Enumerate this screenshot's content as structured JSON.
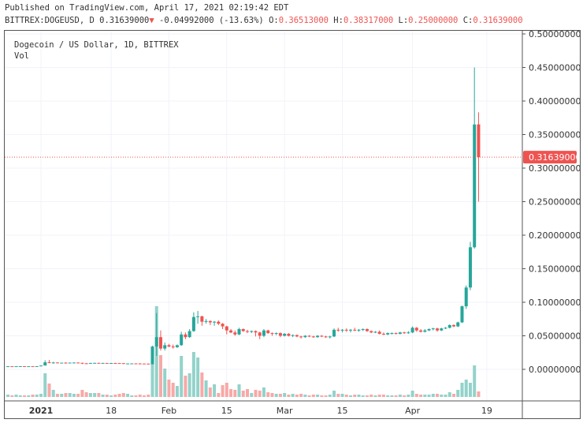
{
  "header": {
    "published": "Published on TradingView.com, April 17, 2021 02:19:42 EDT",
    "symbol": "BITTREX:DOGEUSD, D",
    "last": "0.31639000",
    "change": "-0.04992000 (-13.63%)",
    "o_label": "O:",
    "o": "0.36513000",
    "h_label": "H:",
    "h": "0.38317000",
    "l_label": "L:",
    "l": "0.25000000",
    "c_label": "C:",
    "c": "0.31639000",
    "down_arrow": "triangle-down-icon"
  },
  "colors": {
    "up": "#26a69a",
    "down": "#ef5350",
    "up_vol": "#93d2ca",
    "down_vol": "#f7a9a7"
  },
  "chart_data": {
    "type": "candlestick",
    "title": "Dogecoin / US Dollar, 1D, BITTREX",
    "volume_label": "Vol",
    "start_date": "2020-12-24",
    "ylim": [
      0,
      0.5
    ],
    "yticks": [
      "0.50000000",
      "0.45000000",
      "0.40000000",
      "0.35000000",
      "0.30000000",
      "0.25000000",
      "0.20000000",
      "0.15000000",
      "0.10000000",
      "0.05000000",
      "0.00000000"
    ],
    "yvalues": [
      0.5,
      0.45,
      0.4,
      0.35,
      0.3,
      0.25,
      0.2,
      0.15,
      0.1,
      0.05,
      0
    ],
    "xticks": [
      {
        "label": "2021",
        "day": 0,
        "bold": true
      },
      {
        "label": "18",
        "day": 17
      },
      {
        "label": "Feb",
        "day": 31
      },
      {
        "label": "15",
        "day": 45
      },
      {
        "label": "Mar",
        "day": 59
      },
      {
        "label": "15",
        "day": 73
      },
      {
        "label": "Apr",
        "day": 90
      },
      {
        "label": "19",
        "day": 108
      }
    ],
    "last_price_label": "0.31639000",
    "last_price": 0.31639,
    "ohlcv": [
      [
        0.0046,
        0.0048,
        0.0044,
        0.0046,
        3
      ],
      [
        0.0046,
        0.0047,
        0.0045,
        0.0045,
        2
      ],
      [
        0.0045,
        0.0047,
        0.0044,
        0.0046,
        3
      ],
      [
        0.0046,
        0.0048,
        0.0045,
        0.0047,
        2
      ],
      [
        0.0047,
        0.0048,
        0.0045,
        0.0045,
        2
      ],
      [
        0.0045,
        0.0047,
        0.0044,
        0.0046,
        2
      ],
      [
        0.0046,
        0.0047,
        0.0045,
        0.0045,
        3
      ],
      [
        0.0045,
        0.0048,
        0.0045,
        0.0047,
        3
      ],
      [
        0.0047,
        0.0058,
        0.0046,
        0.0057,
        4
      ],
      [
        0.0057,
        0.0135,
        0.0056,
        0.0105,
        30
      ],
      [
        0.0105,
        0.014,
        0.0093,
        0.0099,
        17
      ],
      [
        0.0099,
        0.0112,
        0.0085,
        0.0102,
        9
      ],
      [
        0.0102,
        0.0104,
        0.009,
        0.0097,
        4
      ],
      [
        0.0097,
        0.01,
        0.0092,
        0.0099,
        4
      ],
      [
        0.0099,
        0.0106,
        0.0094,
        0.0098,
        5
      ],
      [
        0.0098,
        0.0101,
        0.009,
        0.01,
        5
      ],
      [
        0.01,
        0.0104,
        0.0095,
        0.0101,
        4
      ],
      [
        0.0101,
        0.0104,
        0.0092,
        0.0097,
        4
      ],
      [
        0.0097,
        0.0099,
        0.0077,
        0.009,
        9
      ],
      [
        0.009,
        0.0096,
        0.0083,
        0.0086,
        6
      ],
      [
        0.0086,
        0.0096,
        0.0084,
        0.0095,
        5
      ],
      [
        0.0095,
        0.0099,
        0.0091,
        0.0096,
        5
      ],
      [
        0.0096,
        0.0099,
        0.0089,
        0.0093,
        5
      ],
      [
        0.0093,
        0.0097,
        0.009,
        0.0095,
        3
      ],
      [
        0.0095,
        0.0096,
        0.0091,
        0.0094,
        3
      ],
      [
        0.0094,
        0.0096,
        0.009,
        0.0094,
        2
      ],
      [
        0.0094,
        0.0097,
        0.0091,
        0.0093,
        3
      ],
      [
        0.0093,
        0.0095,
        0.0086,
        0.0092,
        4
      ],
      [
        0.0092,
        0.0093,
        0.0078,
        0.0081,
        5
      ],
      [
        0.0081,
        0.0089,
        0.0079,
        0.0087,
        4
      ],
      [
        0.0087,
        0.009,
        0.0085,
        0.0088,
        2
      ],
      [
        0.0088,
        0.009,
        0.0085,
        0.0087,
        2
      ],
      [
        0.0087,
        0.0092,
        0.0084,
        0.0086,
        3
      ],
      [
        0.0086,
        0.0088,
        0.0082,
        0.0085,
        2
      ],
      [
        0.0085,
        0.0087,
        0.0075,
        0.0076,
        3
      ],
      [
        0.0076,
        0.0352,
        0.0074,
        0.034,
        60
      ],
      [
        0.034,
        0.084,
        0.02,
        0.048,
        115
      ],
      [
        0.048,
        0.058,
        0.028,
        0.031,
        53
      ],
      [
        0.031,
        0.04,
        0.028,
        0.036,
        36
      ],
      [
        0.036,
        0.038,
        0.033,
        0.034,
        22
      ],
      [
        0.034,
        0.037,
        0.031,
        0.033,
        18
      ],
      [
        0.033,
        0.037,
        0.032,
        0.036,
        14
      ],
      [
        0.036,
        0.056,
        0.035,
        0.052,
        52
      ],
      [
        0.052,
        0.055,
        0.045,
        0.048,
        27
      ],
      [
        0.048,
        0.06,
        0.047,
        0.057,
        30
      ],
      [
        0.057,
        0.085,
        0.056,
        0.078,
        57
      ],
      [
        0.078,
        0.087,
        0.068,
        0.079,
        50
      ],
      [
        0.079,
        0.08,
        0.065,
        0.071,
        31
      ],
      [
        0.071,
        0.075,
        0.068,
        0.072,
        21
      ],
      [
        0.072,
        0.073,
        0.066,
        0.07,
        12
      ],
      [
        0.07,
        0.072,
        0.065,
        0.071,
        16
      ],
      [
        0.071,
        0.073,
        0.066,
        0.068,
        5
      ],
      [
        0.068,
        0.069,
        0.06,
        0.064,
        15
      ],
      [
        0.064,
        0.065,
        0.052,
        0.058,
        18
      ],
      [
        0.058,
        0.06,
        0.054,
        0.055,
        10
      ],
      [
        0.055,
        0.058,
        0.05,
        0.052,
        9
      ],
      [
        0.052,
        0.062,
        0.051,
        0.06,
        16
      ],
      [
        0.06,
        0.061,
        0.056,
        0.057,
        8
      ],
      [
        0.057,
        0.059,
        0.054,
        0.056,
        10
      ],
      [
        0.056,
        0.058,
        0.054,
        0.057,
        5
      ],
      [
        0.057,
        0.058,
        0.049,
        0.055,
        9
      ],
      [
        0.055,
        0.056,
        0.045,
        0.05,
        8
      ],
      [
        0.05,
        0.06,
        0.048,
        0.058,
        12
      ],
      [
        0.058,
        0.059,
        0.053,
        0.054,
        6
      ],
      [
        0.054,
        0.055,
        0.05,
        0.053,
        5
      ],
      [
        0.053,
        0.055,
        0.051,
        0.054,
        4
      ],
      [
        0.054,
        0.055,
        0.048,
        0.05,
        4
      ],
      [
        0.05,
        0.054,
        0.049,
        0.053,
        5
      ],
      [
        0.053,
        0.054,
        0.049,
        0.05,
        3
      ],
      [
        0.05,
        0.052,
        0.048,
        0.051,
        4
      ],
      [
        0.051,
        0.052,
        0.048,
        0.049,
        3
      ],
      [
        0.049,
        0.05,
        0.046,
        0.048,
        4
      ],
      [
        0.048,
        0.051,
        0.047,
        0.05,
        3
      ],
      [
        0.05,
        0.051,
        0.048,
        0.049,
        2
      ],
      [
        0.049,
        0.05,
        0.047,
        0.048,
        3
      ],
      [
        0.048,
        0.051,
        0.047,
        0.05,
        3
      ],
      [
        0.05,
        0.051,
        0.048,
        0.049,
        2
      ],
      [
        0.049,
        0.05,
        0.047,
        0.048,
        2
      ],
      [
        0.048,
        0.05,
        0.046,
        0.049,
        3
      ],
      [
        0.049,
        0.061,
        0.048,
        0.059,
        8
      ],
      [
        0.059,
        0.062,
        0.056,
        0.058,
        4
      ],
      [
        0.058,
        0.06,
        0.055,
        0.059,
        4
      ],
      [
        0.059,
        0.061,
        0.056,
        0.058,
        3
      ],
      [
        0.058,
        0.06,
        0.055,
        0.059,
        2
      ],
      [
        0.059,
        0.062,
        0.057,
        0.058,
        3
      ],
      [
        0.058,
        0.06,
        0.056,
        0.059,
        3
      ],
      [
        0.059,
        0.061,
        0.057,
        0.06,
        2
      ],
      [
        0.06,
        0.061,
        0.056,
        0.057,
        2
      ],
      [
        0.057,
        0.058,
        0.054,
        0.055,
        3
      ],
      [
        0.055,
        0.057,
        0.054,
        0.056,
        2
      ],
      [
        0.056,
        0.058,
        0.052,
        0.053,
        3
      ],
      [
        0.053,
        0.055,
        0.051,
        0.052,
        3
      ],
      [
        0.052,
        0.055,
        0.051,
        0.054,
        2
      ],
      [
        0.054,
        0.055,
        0.052,
        0.054,
        2
      ],
      [
        0.054,
        0.055,
        0.052,
        0.053,
        2
      ],
      [
        0.053,
        0.056,
        0.052,
        0.055,
        3
      ],
      [
        0.055,
        0.056,
        0.053,
        0.054,
        2
      ],
      [
        0.054,
        0.057,
        0.053,
        0.055,
        3
      ],
      [
        0.055,
        0.064,
        0.054,
        0.062,
        8
      ],
      [
        0.062,
        0.063,
        0.056,
        0.058,
        4
      ],
      [
        0.058,
        0.06,
        0.055,
        0.056,
        3
      ],
      [
        0.056,
        0.06,
        0.055,
        0.058,
        3
      ],
      [
        0.058,
        0.061,
        0.057,
        0.06,
        3
      ],
      [
        0.06,
        0.062,
        0.058,
        0.061,
        4
      ],
      [
        0.061,
        0.062,
        0.056,
        0.058,
        4
      ],
      [
        0.058,
        0.062,
        0.057,
        0.061,
        3
      ],
      [
        0.061,
        0.063,
        0.06,
        0.062,
        3
      ],
      [
        0.062,
        0.067,
        0.061,
        0.066,
        6
      ],
      [
        0.066,
        0.067,
        0.063,
        0.064,
        4
      ],
      [
        0.064,
        0.071,
        0.063,
        0.07,
        9
      ],
      [
        0.07,
        0.095,
        0.069,
        0.094,
        18
      ],
      [
        0.094,
        0.125,
        0.09,
        0.122,
        22
      ],
      [
        0.122,
        0.19,
        0.118,
        0.182,
        18
      ],
      [
        0.182,
        0.45,
        0.18,
        0.365,
        40
      ],
      [
        0.36513,
        0.38317,
        0.25,
        0.31639,
        7
      ]
    ]
  }
}
